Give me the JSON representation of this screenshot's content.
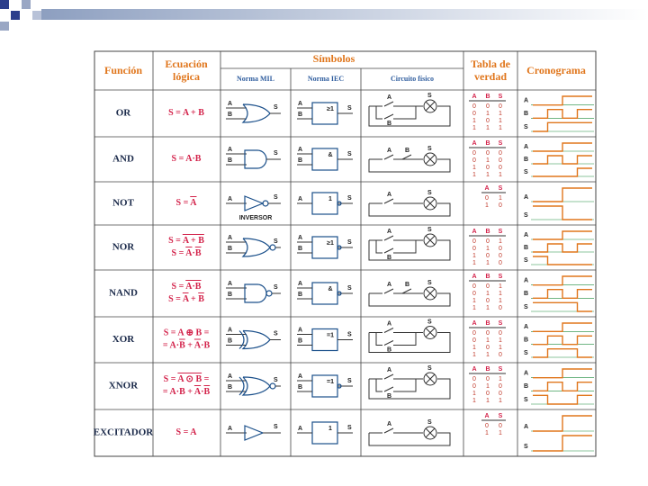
{
  "header": {
    "function": "Función",
    "equation": [
      "Ecuación",
      "lógica"
    ],
    "symbols": "Símbolos",
    "mil": "Norma MIL",
    "iec": "Norma IEC",
    "circuit": "Circuito físico",
    "truth": [
      "Tabla de",
      "verdad"
    ],
    "chrono": "Cronograma"
  },
  "table": {
    "rows": [
      {
        "function": "OR",
        "equation": [
          [
            {
              "text": "S = A + B"
            }
          ]
        ],
        "iec": "≥1",
        "inputs": [
          "A",
          "B"
        ],
        "output": "S",
        "truth": {
          "headers": [
            "A",
            "B",
            "S"
          ],
          "values": [
            [
              0,
              0,
              0
            ],
            [
              0,
              1,
              1
            ],
            [
              1,
              0,
              1
            ],
            [
              1,
              1,
              1
            ]
          ]
        }
      },
      {
        "function": "AND",
        "equation": [
          [
            {
              "text": "S = A·B"
            }
          ]
        ],
        "iec": "&",
        "inputs": [
          "A",
          "B"
        ],
        "output": "S",
        "truth": {
          "headers": [
            "A",
            "B",
            "S"
          ],
          "values": [
            [
              0,
              0,
              0
            ],
            [
              0,
              1,
              0
            ],
            [
              1,
              0,
              0
            ],
            [
              1,
              1,
              1
            ]
          ]
        }
      },
      {
        "function": "NOT",
        "equation": [
          [
            {
              "text": "S = "
            },
            {
              "text": "A",
              "overline": true
            }
          ]
        ],
        "iec": "1",
        "note": "INVERSOR",
        "inputs": [
          "A"
        ],
        "output": "S",
        "truth": {
          "headers": [
            "A",
            "S"
          ],
          "values": [
            [
              0,
              1
            ],
            [
              1,
              0
            ]
          ]
        }
      },
      {
        "function": "NOR",
        "equation": [
          [
            {
              "text": "S = "
            },
            {
              "text": "A + B",
              "overline": true
            }
          ],
          [
            {
              "text": "S = "
            },
            {
              "text": "A",
              "overline": true
            },
            {
              "text": "·"
            },
            {
              "text": "B",
              "overline": true
            }
          ]
        ],
        "iec": "≥1",
        "inputs": [
          "A",
          "B"
        ],
        "output": "S",
        "truth": {
          "headers": [
            "A",
            "B",
            "S"
          ],
          "values": [
            [
              0,
              0,
              1
            ],
            [
              0,
              1,
              0
            ],
            [
              1,
              0,
              0
            ],
            [
              1,
              1,
              0
            ]
          ]
        }
      },
      {
        "function": "NAND",
        "equation": [
          [
            {
              "text": "S = "
            },
            {
              "text": "A·B",
              "overline": true
            }
          ],
          [
            {
              "text": "S = "
            },
            {
              "text": "A",
              "overline": true
            },
            {
              "text": " + "
            },
            {
              "text": "B",
              "overline": true
            }
          ]
        ],
        "iec": "&",
        "inputs": [
          "A",
          "B"
        ],
        "output": "S",
        "truth": {
          "headers": [
            "A",
            "B",
            "S"
          ],
          "values": [
            [
              0,
              0,
              1
            ],
            [
              0,
              1,
              1
            ],
            [
              1,
              0,
              1
            ],
            [
              1,
              1,
              0
            ]
          ]
        }
      },
      {
        "function": "XOR",
        "equation": [
          [
            {
              "text": "S = A ⊕ B ="
            }
          ],
          [
            {
              "text": "= A·"
            },
            {
              "text": "B",
              "overline": true
            },
            {
              "text": " + "
            },
            {
              "text": "A",
              "overline": true
            },
            {
              "text": "·B"
            }
          ]
        ],
        "iec": "=1",
        "inputs": [
          "A",
          "B"
        ],
        "output": "S",
        "truth": {
          "headers": [
            "A",
            "B",
            "S"
          ],
          "values": [
            [
              0,
              0,
              0
            ],
            [
              0,
              1,
              1
            ],
            [
              1,
              0,
              1
            ],
            [
              1,
              1,
              0
            ]
          ]
        }
      },
      {
        "function": "XNOR",
        "equation": [
          [
            {
              "text": "S = "
            },
            {
              "text": "A ⊙ B",
              "overline": true
            },
            {
              "text": " ="
            }
          ],
          [
            {
              "text": "= A·B + "
            },
            {
              "text": "A",
              "overline": true
            },
            {
              "text": "·"
            },
            {
              "text": "B",
              "overline": true
            }
          ]
        ],
        "iec": "=1",
        "inputs": [
          "A",
          "B"
        ],
        "output": "S",
        "truth": {
          "headers": [
            "A",
            "B",
            "S"
          ],
          "values": [
            [
              0,
              0,
              1
            ],
            [
              0,
              1,
              0
            ],
            [
              1,
              0,
              0
            ],
            [
              1,
              1,
              1
            ]
          ]
        }
      },
      {
        "function": "EXCITADOR",
        "equation": [
          [
            {
              "text": "S = A"
            }
          ]
        ],
        "iec": "1",
        "inputs": [
          "A"
        ],
        "output": "S",
        "truth": {
          "headers": [
            "A",
            "S"
          ],
          "values": [
            [
              0,
              0
            ],
            [
              1,
              1
            ]
          ]
        }
      }
    ]
  }
}
